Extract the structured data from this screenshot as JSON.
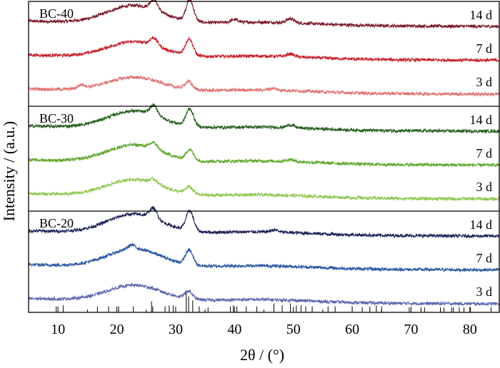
{
  "chart_data": {
    "type": "line",
    "xlabel": "2θ / (°)",
    "ylabel": "Intensity / (a.u.)",
    "xlim": [
      5,
      85
    ],
    "xticks": [
      10,
      20,
      30,
      40,
      50,
      60,
      70,
      80
    ],
    "grid": false,
    "panels": [
      {
        "label": "BC-40",
        "series": [
          {
            "name": "14 d",
            "color": "#7a1526",
            "features": {
              "broad_hump": [
                23,
                0.52
              ],
              "peaks": [
                [
                  26.3,
                  0.3
                ],
                [
                  32.4,
                  0.62
                ],
                [
                  40.0,
                  0.08
                ],
                [
                  49.5,
                  0.12
                ]
              ],
              "baseline": 0.1
            }
          },
          {
            "name": "7 d",
            "color": "#c8202a",
            "features": {
              "broad_hump": [
                23,
                0.45
              ],
              "peaks": [
                [
                  26.3,
                  0.22
                ],
                [
                  32.3,
                  0.48
                ],
                [
                  49.5,
                  0.08
                ]
              ],
              "baseline": 0.09
            }
          },
          {
            "name": "3 d",
            "color": "#e07070",
            "features": {
              "broad_hump": [
                23,
                0.4
              ],
              "peaks": [
                [
                  14.0,
                  0.1
                ],
                [
                  32.2,
                  0.22
                ],
                [
                  46.5,
                  0.05
                ]
              ],
              "baseline": 0.08
            }
          }
        ]
      },
      {
        "label": "BC-30",
        "series": [
          {
            "name": "14 d",
            "color": "#255e1d",
            "features": {
              "broad_hump": [
                23,
                0.5
              ],
              "peaks": [
                [
                  26.3,
                  0.28
                ],
                [
                  32.4,
                  0.5
                ],
                [
                  49.5,
                  0.08
                ]
              ],
              "baseline": 0.1
            }
          },
          {
            "name": "7 d",
            "color": "#5ea52a",
            "features": {
              "broad_hump": [
                23,
                0.5
              ],
              "peaks": [
                [
                  26.3,
                  0.18
                ],
                [
                  32.4,
                  0.3
                ],
                [
                  49.5,
                  0.06
                ]
              ],
              "baseline": 0.09
            }
          },
          {
            "name": "3 d",
            "color": "#8fc750",
            "features": {
              "broad_hump": [
                23,
                0.48
              ],
              "peaks": [
                [
                  26.3,
                  0.12
                ],
                [
                  32.3,
                  0.2
                ]
              ],
              "baseline": 0.08
            }
          }
        ]
      },
      {
        "label": "BC-20",
        "series": [
          {
            "name": "14 d",
            "color": "#1a1f55",
            "features": {
              "broad_hump": [
                23,
                0.55
              ],
              "peaks": [
                [
                  26.2,
                  0.3
                ],
                [
                  32.4,
                  0.58
                ],
                [
                  46.8,
                  0.06
                ]
              ],
              "baseline": 0.1
            }
          },
          {
            "name": "7 d",
            "color": "#2755a2",
            "features": {
              "broad_hump": [
                23,
                0.52
              ],
              "peaks": [
                [
                  22.5,
                  0.12
                ],
                [
                  32.3,
                  0.42
                ]
              ],
              "baseline": 0.09
            }
          },
          {
            "name": "3 d",
            "color": "#5866ad",
            "features": {
              "broad_hump": [
                23,
                0.45
              ],
              "peaks": [
                [
                  32.2,
                  0.22
                ]
              ],
              "baseline": 0.08
            }
          }
        ]
      }
    ],
    "reference_peaks": [
      {
        "x": 9.7,
        "h": 0.3
      },
      {
        "x": 10.9,
        "h": 0.35
      },
      {
        "x": 16.7,
        "h": 0.3
      },
      {
        "x": 18.6,
        "h": 0.3
      },
      {
        "x": 20.3,
        "h": 0.3
      },
      {
        "x": 22.8,
        "h": 0.3
      },
      {
        "x": 25.9,
        "h": 0.55
      },
      {
        "x": 26.1,
        "h": 0.3
      },
      {
        "x": 28.2,
        "h": 0.3
      },
      {
        "x": 28.9,
        "h": 0.35
      },
      {
        "x": 29.6,
        "h": 0.35
      },
      {
        "x": 31.8,
        "h": 1.0
      },
      {
        "x": 32.2,
        "h": 0.8
      },
      {
        "x": 32.9,
        "h": 0.6
      },
      {
        "x": 34.0,
        "h": 0.3
      },
      {
        "x": 35.5,
        "h": 0.25
      },
      {
        "x": 39.3,
        "h": 0.3
      },
      {
        "x": 39.8,
        "h": 0.35
      },
      {
        "x": 40.4,
        "h": 0.3
      },
      {
        "x": 42.0,
        "h": 0.3
      },
      {
        "x": 43.8,
        "h": 0.3
      },
      {
        "x": 46.7,
        "h": 0.45
      },
      {
        "x": 48.1,
        "h": 0.35
      },
      {
        "x": 49.5,
        "h": 0.45
      },
      {
        "x": 50.5,
        "h": 0.35
      },
      {
        "x": 51.3,
        "h": 0.35
      },
      {
        "x": 52.1,
        "h": 0.3
      },
      {
        "x": 53.2,
        "h": 0.3
      },
      {
        "x": 55.9,
        "h": 0.3
      },
      {
        "x": 57.1,
        "h": 0.3
      },
      {
        "x": 60.0,
        "h": 0.3
      },
      {
        "x": 61.7,
        "h": 0.25
      },
      {
        "x": 63.0,
        "h": 0.3
      },
      {
        "x": 64.1,
        "h": 0.35
      },
      {
        "x": 65.0,
        "h": 0.3
      },
      {
        "x": 69.7,
        "h": 0.25
      },
      {
        "x": 71.7,
        "h": 0.25
      },
      {
        "x": 72.3,
        "h": 0.25
      },
      {
        "x": 75.0,
        "h": 0.25
      },
      {
        "x": 75.6,
        "h": 0.25
      },
      {
        "x": 76.9,
        "h": 0.25
      },
      {
        "x": 77.2,
        "h": 0.25
      },
      {
        "x": 78.2,
        "h": 0.25
      },
      {
        "x": 79.0,
        "h": 0.25
      },
      {
        "x": 80.1,
        "h": 0.25
      },
      {
        "x": 83.6,
        "h": 0.25
      }
    ]
  }
}
